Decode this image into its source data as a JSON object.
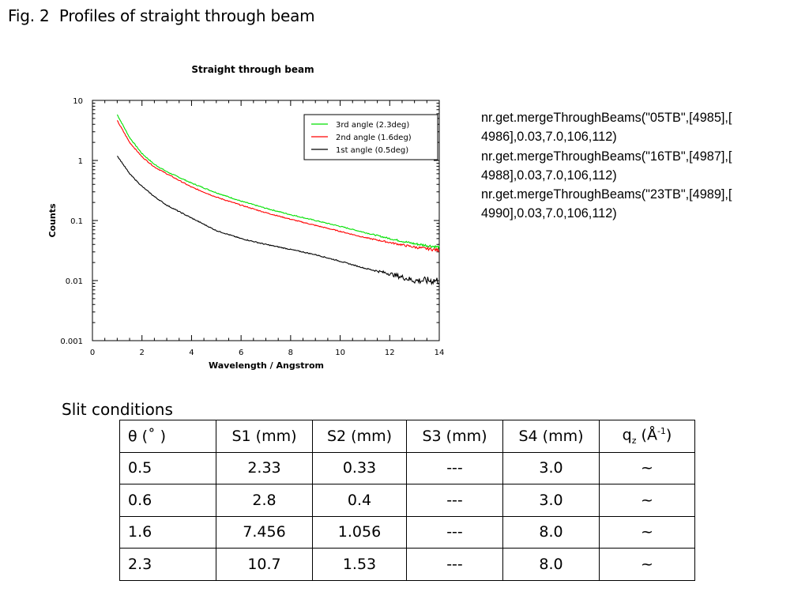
{
  "page": {
    "caption": "Fig. 2  Profiles of straight through beam",
    "commands": [
      "nr.get.mergeThroughBeams(\"05TB\",[4985],[",
      "4986],0.03,7.0,106,112)",
      "nr.get.mergeThroughBeams(\"16TB\",[4987],[",
      "4988],0.03,7.0,106,112)",
      "nr.get.mergeThroughBeams(\"23TB\",[4989],[",
      "4990],0.03,7.0,106,112)"
    ]
  },
  "slit_table": {
    "title": "Slit conditions",
    "headers": {
      "theta": "θ (˚ )",
      "s1": "S1 (mm)",
      "s2": "S2 (mm)",
      "s3": "S3 (mm)",
      "s4": "S4 (mm)",
      "qz_base": "q",
      "qz_sub": "z",
      "qz_mid": " (Å",
      "qz_sup": "-1",
      "qz_end": ")"
    },
    "rows": [
      [
        "0.5",
        "2.33",
        "0.33",
        "---",
        "3.0",
        "~"
      ],
      [
        "0.6",
        "2.8",
        "0.4",
        "---",
        "3.0",
        "~"
      ],
      [
        "1.6",
        "7.456",
        "1.056",
        "---",
        "8.0",
        "~"
      ],
      [
        "2.3",
        "10.7",
        "1.53",
        "---",
        "8.0",
        "~"
      ]
    ]
  },
  "chart_data": {
    "type": "line",
    "title": "Straight through beam",
    "xlabel": "Wavelength / Angstrom",
    "ylabel": "Counts",
    "xlim": [
      0,
      14
    ],
    "ylim": [
      0.001,
      10
    ],
    "yscale": "log",
    "grid": false,
    "legend_position": "top-right",
    "x_ticks": [
      "0",
      "2",
      "4",
      "6",
      "8",
      "10",
      "12",
      "14"
    ],
    "y_ticks": [
      "0.001",
      "0.01",
      "0.1",
      "1",
      "10"
    ],
    "series": [
      {
        "name": "3rd angle  (2.3deg)",
        "color": "#00e000",
        "x": [
          1.0,
          1.5,
          2.0,
          2.5,
          3.0,
          4.0,
          5.0,
          6.0,
          7.0,
          8.0,
          9.0,
          10.0,
          11.0,
          12.0,
          13.0,
          14.0
        ],
        "y": [
          5.8,
          2.4,
          1.3,
          0.86,
          0.65,
          0.42,
          0.29,
          0.21,
          0.16,
          0.125,
          0.1,
          0.08,
          0.063,
          0.05,
          0.041,
          0.036
        ]
      },
      {
        "name": "2nd angle  (1.6deg)",
        "color": "#ff0000",
        "x": [
          1.0,
          1.5,
          2.0,
          2.5,
          3.0,
          4.0,
          5.0,
          6.0,
          7.0,
          8.0,
          9.0,
          10.0,
          11.0,
          12.0,
          13.0,
          14.0
        ],
        "y": [
          4.6,
          2.0,
          1.15,
          0.78,
          0.6,
          0.36,
          0.245,
          0.18,
          0.135,
          0.105,
          0.083,
          0.066,
          0.052,
          0.043,
          0.036,
          0.032
        ]
      },
      {
        "name": "1st angle  (0.5deg)",
        "color": "#000000",
        "x": [
          1.0,
          1.5,
          2.0,
          2.5,
          3.0,
          4.0,
          5.0,
          6.0,
          7.0,
          8.0,
          9.0,
          10.0,
          11.0,
          12.0,
          13.0,
          14.0
        ],
        "y": [
          1.2,
          0.6,
          0.37,
          0.25,
          0.18,
          0.11,
          0.068,
          0.05,
          0.04,
          0.033,
          0.027,
          0.021,
          0.016,
          0.013,
          0.01,
          0.01
        ]
      }
    ]
  }
}
